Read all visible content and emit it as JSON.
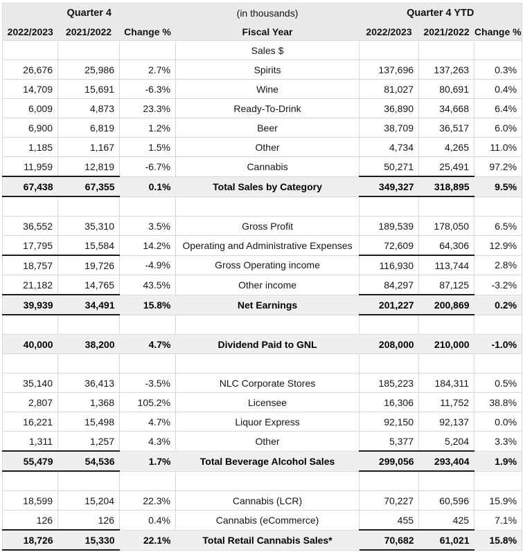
{
  "header": {
    "q4_label": "Quarter 4",
    "units_label": "(in thousands)",
    "ytd_label": "Quarter 4 YTD",
    "columns": [
      "2022/2023",
      "2021/2022",
      "Change %",
      "Fiscal Year",
      "2022/2023",
      "2021/2022",
      "Change %"
    ]
  },
  "colors": {
    "header_bg": "#eaeaea",
    "total_row_bg": "#efefef",
    "gridline": "#d9d9d9",
    "text": "#151515",
    "underline": "#1a1a1a"
  },
  "rows": [
    {
      "type": "label",
      "underline": false,
      "cells": [
        "",
        "",
        "",
        "Sales $",
        "",
        "",
        ""
      ]
    },
    {
      "type": "data",
      "underline": false,
      "cells": [
        "26,676",
        "25,986",
        "2.7%",
        "Spirits",
        "137,696",
        "137,263",
        "0.3%"
      ]
    },
    {
      "type": "data",
      "underline": false,
      "cells": [
        "14,709",
        "15,691",
        "-6.3%",
        "Wine",
        "81,027",
        "80,691",
        "0.4%"
      ]
    },
    {
      "type": "data",
      "underline": false,
      "cells": [
        "6,009",
        "4,873",
        "23.3%",
        "Ready-To-Drink",
        "36,890",
        "34,668",
        "6.4%"
      ]
    },
    {
      "type": "data",
      "underline": false,
      "cells": [
        "6,900",
        "6,819",
        "1.2%",
        "Beer",
        "38,709",
        "36,517",
        "6.0%"
      ]
    },
    {
      "type": "data",
      "underline": false,
      "cells": [
        "1,185",
        "1,167",
        "1.5%",
        "Other",
        "4,734",
        "4,265",
        "11.0%"
      ]
    },
    {
      "type": "data",
      "underline": true,
      "cells": [
        "11,959",
        "12,819",
        "-6.7%",
        "Cannabis",
        "50,271",
        "25,491",
        "97.2%"
      ]
    },
    {
      "type": "total",
      "underline": true,
      "cells": [
        "67,438",
        "67,355",
        "0.1%",
        "Total Sales by Category",
        "349,327",
        "318,895",
        "9.5%"
      ]
    },
    {
      "type": "empty",
      "underline": false,
      "cells": [
        "",
        "",
        "",
        "",
        "",
        "",
        ""
      ]
    },
    {
      "type": "data",
      "underline": false,
      "cells": [
        "36,552",
        "35,310",
        "3.5%",
        "Gross Profit",
        "189,539",
        "178,050",
        "6.5%"
      ]
    },
    {
      "type": "data",
      "underline": true,
      "cells": [
        "17,795",
        "15,584",
        "14.2%",
        "Operating and Administrative Expenses",
        "72,609",
        "64,306",
        "12.9%"
      ]
    },
    {
      "type": "data",
      "underline": false,
      "cells": [
        "18,757",
        "19,726",
        "-4.9%",
        "Gross Operating income",
        "116,930",
        "113,744",
        "2.8%"
      ]
    },
    {
      "type": "data",
      "underline": true,
      "cells": [
        "21,182",
        "14,765",
        "43.5%",
        "Other income",
        "84,297",
        "87,125",
        "-3.2%"
      ]
    },
    {
      "type": "total",
      "underline": true,
      "cells": [
        "39,939",
        "34,491",
        "15.8%",
        "Net Earnings",
        "201,227",
        "200,869",
        "0.2%"
      ]
    },
    {
      "type": "empty",
      "underline": false,
      "cells": [
        "",
        "",
        "",
        "",
        "",
        "",
        ""
      ]
    },
    {
      "type": "totalplain",
      "underline": false,
      "cells": [
        "40,000",
        "38,200",
        "4.7%",
        "Dividend Paid to GNL",
        "208,000",
        "210,000",
        "-1.0%"
      ]
    },
    {
      "type": "empty",
      "underline": false,
      "cells": [
        "",
        "",
        "",
        "",
        "",
        "",
        ""
      ]
    },
    {
      "type": "data",
      "underline": false,
      "cells": [
        "35,140",
        "36,413",
        "-3.5%",
        "NLC Corporate Stores",
        "185,223",
        "184,311",
        "0.5%"
      ]
    },
    {
      "type": "data",
      "underline": false,
      "cells": [
        "2,807",
        "1,368",
        "105.2%",
        "Licensee",
        "16,306",
        "11,752",
        "38.8%"
      ]
    },
    {
      "type": "data",
      "underline": false,
      "cells": [
        "16,221",
        "15,498",
        "4.7%",
        "Liquor Express",
        "92,150",
        "92,137",
        "0.0%"
      ]
    },
    {
      "type": "data",
      "underline": true,
      "cells": [
        "1,311",
        "1,257",
        "4.3%",
        "Other",
        "5,377",
        "5,204",
        "3.3%"
      ]
    },
    {
      "type": "total",
      "underline": true,
      "cells": [
        "55,479",
        "54,536",
        "1.7%",
        "Total Beverage Alcohol Sales",
        "299,056",
        "293,404",
        "1.9%"
      ]
    },
    {
      "type": "empty",
      "underline": false,
      "cells": [
        "",
        "",
        "",
        "",
        "",
        "",
        ""
      ]
    },
    {
      "type": "data",
      "underline": false,
      "cells": [
        "18,599",
        "15,204",
        "22.3%",
        "Cannabis (LCR)",
        "70,227",
        "60,596",
        "15.9%"
      ]
    },
    {
      "type": "data",
      "underline": true,
      "cells": [
        "126",
        "126",
        "0.4%",
        "Cannabis (eCommerce)",
        "455",
        "425",
        "7.1%"
      ]
    },
    {
      "type": "total",
      "underline": true,
      "cells": [
        "18,726",
        "15,330",
        "22.1%",
        "Total Retail Cannabis Sales*",
        "70,682",
        "61,021",
        "15.8%"
      ]
    }
  ]
}
